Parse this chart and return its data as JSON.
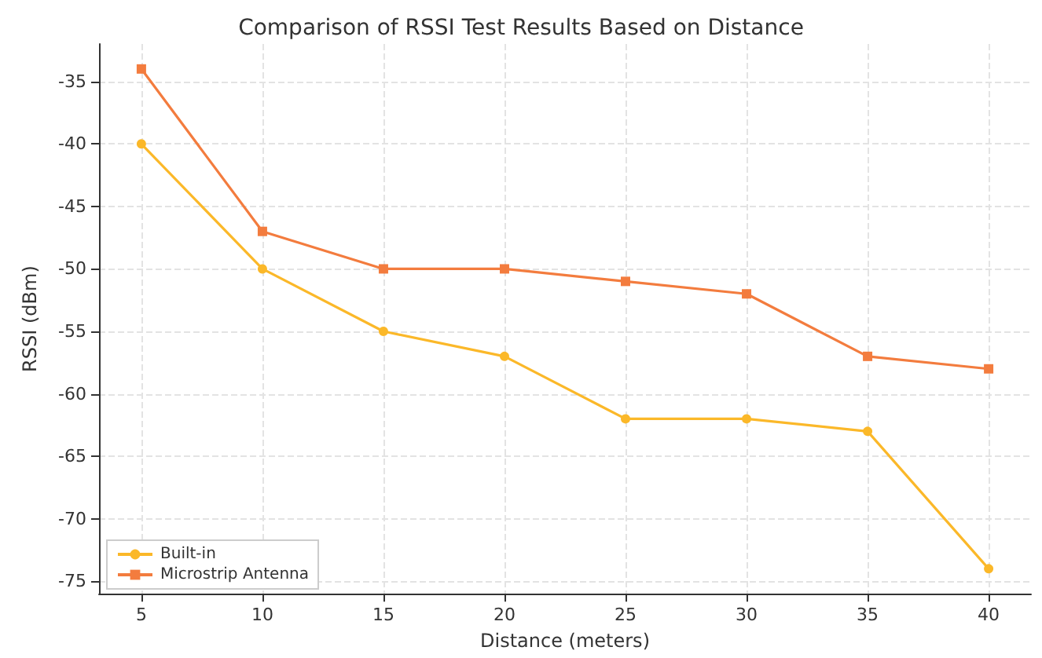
{
  "chart_data": {
    "type": "line",
    "title": "Comparison of RSSI Test Results Based on Distance",
    "xlabel": "Distance (meters)",
    "ylabel": "RSSI (dBm)",
    "x": [
      5,
      10,
      15,
      20,
      25,
      30,
      35,
      40
    ],
    "series": [
      {
        "name": "Built-in",
        "color": "#fbb829",
        "marker": "circle",
        "values": [
          -40,
          -50,
          -55,
          -57,
          -62,
          -62,
          -63,
          -74
        ]
      },
      {
        "name": "Microstrip Antenna",
        "color": "#f37c3e",
        "marker": "square",
        "values": [
          -34,
          -47,
          -50,
          -50,
          -51,
          -52,
          -57,
          -58
        ]
      }
    ],
    "xlim": [
      3.25,
      41.75
    ],
    "xticks": [
      5,
      10,
      15,
      20,
      25,
      30,
      35,
      40
    ],
    "ylim": [
      -76,
      -32
    ],
    "yticks": [
      -75,
      -70,
      -65,
      -60,
      -55,
      -50,
      -45,
      -40,
      -35
    ],
    "grid": true,
    "legend": "bottom left",
    "line_style": "solid"
  }
}
